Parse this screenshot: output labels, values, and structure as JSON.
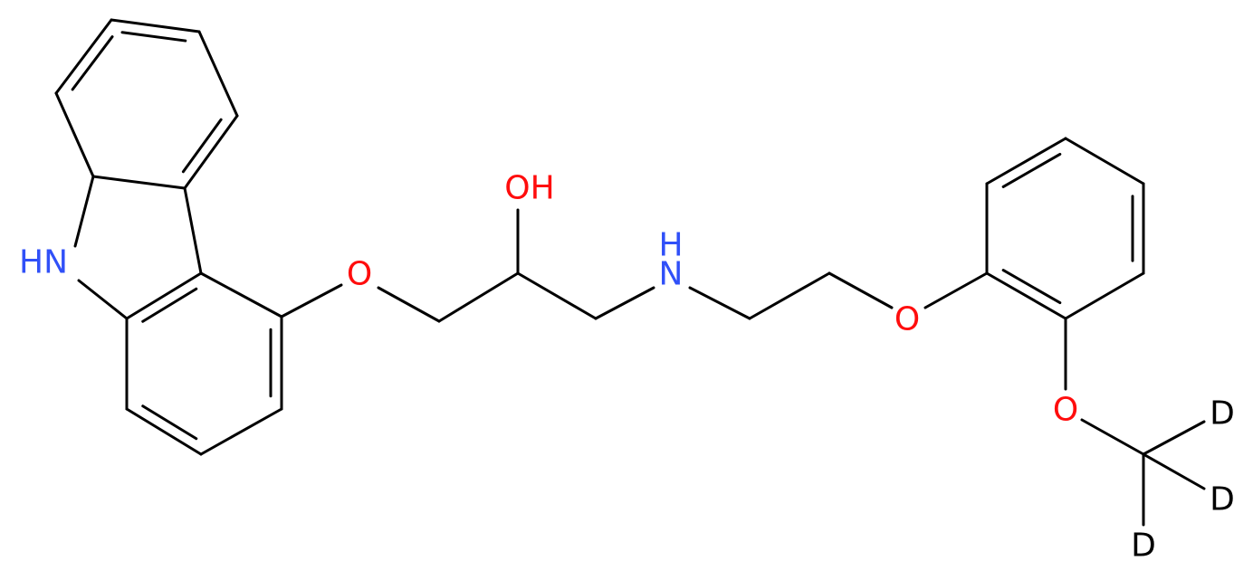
{
  "atoms": [
    {
      "label": "HN"
    },
    {
      "label": "O"
    },
    {
      "label": "OH"
    },
    {
      "label": "H"
    },
    {
      "label": "N"
    },
    {
      "label": "O"
    },
    {
      "label": "O"
    },
    {
      "label": "D"
    },
    {
      "label": "D"
    },
    {
      "label": "D"
    }
  ]
}
